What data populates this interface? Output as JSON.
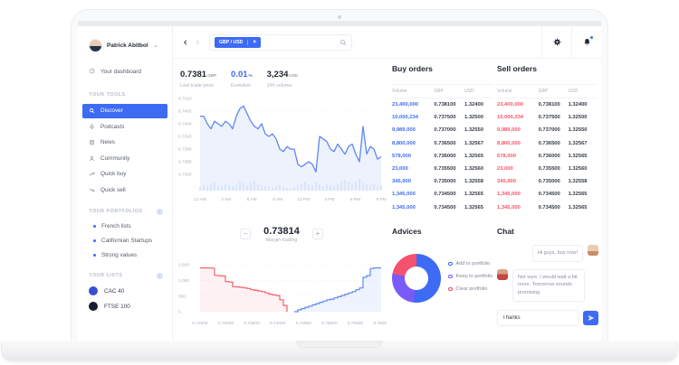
{
  "sidebar": {
    "user": {
      "name": "Patrick Abitbol"
    },
    "dashboard": {
      "label": "Your dashboard",
      "icon": "dashboard"
    },
    "tools": {
      "title": "YOUR TOOLS",
      "items": [
        {
          "label": "Discover",
          "icon": "search",
          "active": true
        },
        {
          "label": "Podcasts",
          "icon": "mic",
          "active": false
        },
        {
          "label": "News",
          "icon": "news",
          "active": false
        },
        {
          "label": "Community",
          "icon": "person",
          "active": false
        },
        {
          "label": "Quick buy",
          "icon": "trend-up",
          "active": false
        },
        {
          "label": "Quick sell",
          "icon": "trend-down",
          "active": false
        }
      ]
    },
    "portfolios": {
      "title": "YOUR PORTFOLIOS",
      "items": [
        {
          "label": "French lists"
        },
        {
          "label": "Californian Startups"
        },
        {
          "label": "Strong values"
        }
      ]
    },
    "lists": {
      "title": "YOUR LISTS",
      "items": [
        {
          "label": "CAC 40",
          "color": "#3a4ed0"
        },
        {
          "label": "FTSE 100",
          "color": "#161f2c"
        }
      ]
    }
  },
  "topbar": {
    "pair_tag": "GBP / USD",
    "close_label": "×",
    "search_placeholder": ""
  },
  "stats": [
    {
      "value": "0.7381",
      "unit": "GBP",
      "label": "Last trade price",
      "accent": false
    },
    {
      "value": "0.01",
      "unit": "%",
      "label": "Evolution",
      "accent": true
    },
    {
      "value": "3,234",
      "unit": "USD",
      "label": "24h volume",
      "accent": false
    }
  ],
  "margin": {
    "minus": "–",
    "value": "0.73814",
    "plus": "+",
    "label": "Margin trading"
  },
  "buy_orders": {
    "title": "Buy orders",
    "headers": [
      "Volume",
      "GBP",
      "USD"
    ],
    "volume_color": "blue",
    "rows": [
      [
        "23,400,000",
        "0.738100",
        "1.32400"
      ],
      [
        "10,000,234",
        "0.737500",
        "1.32500"
      ],
      [
        "9,989,000",
        "0.737000",
        "1.32550"
      ],
      [
        "8,800,000",
        "0.736500",
        "1.32567"
      ],
      [
        "578,000",
        "0.736000",
        "1.32565"
      ],
      [
        "23,000",
        "0.735500",
        "1.32560"
      ],
      [
        "345,900",
        "0.735000",
        "1.32558"
      ],
      [
        "1,345,000",
        "0.734500",
        "1.32565"
      ],
      [
        "1,345,000",
        "0.734500",
        "1.32565"
      ]
    ]
  },
  "sell_orders": {
    "title": "Sell orders",
    "headers": [
      "Volume",
      "GBP",
      "USD"
    ],
    "volume_color": "red",
    "rows": [
      [
        "23,400,000",
        "0.738100",
        "1.32400"
      ],
      [
        "10,000,234",
        "0.737500",
        "1.32500"
      ],
      [
        "9,989,000",
        "0.737000",
        "1.32550"
      ],
      [
        "8,800,000",
        "0.736500",
        "1.32567"
      ],
      [
        "578,000",
        "0.736000",
        "1.32565"
      ],
      [
        "23,000",
        "0.735500",
        "1.32560"
      ],
      [
        "345,900",
        "0.735000",
        "1.32558"
      ],
      [
        "1,345,000",
        "0.734500",
        "1.32565"
      ],
      [
        "1,345,000",
        "0.734500",
        "1.32565"
      ]
    ]
  },
  "advices": {
    "title": "Advices"
  },
  "chat": {
    "title": "Chat",
    "messages": [
      {
        "side": "right",
        "avatar": "woman",
        "text": "Hi guys, buy now!"
      },
      {
        "side": "left",
        "avatar": "man",
        "text": "Not sure. I would wait a bit more. Tomorrow sounds promising"
      }
    ],
    "input_value": "Thanks"
  },
  "chart_data": [
    {
      "type": "line",
      "name": "price-history",
      "xticks": [
        "12 AM",
        "3 AM",
        "6 AM",
        "9 AM",
        "12 PM",
        "3 PM",
        "6 PM",
        "9 PM"
      ],
      "yticks": [
        "0.7410",
        "0.7405",
        "0.7400",
        "0.7395",
        "0.7390",
        "0.7385",
        "0.7380"
      ],
      "ylim": [
        0.738,
        0.741
      ],
      "values": [
        0.7403,
        0.7403,
        0.74,
        0.7398,
        0.7401,
        0.74,
        0.7399,
        0.7401,
        0.74,
        0.7398,
        0.7403,
        0.7406,
        0.7407,
        0.7404,
        0.7401,
        0.7399,
        0.7398,
        0.74,
        0.7396,
        0.7395,
        0.7396,
        0.7394,
        0.739,
        0.7389,
        0.7391,
        0.739,
        0.739,
        0.7384,
        0.7383,
        0.7384,
        0.7385,
        0.7384,
        0.7381,
        0.7395,
        0.7394,
        0.7393,
        0.739,
        0.7389,
        0.7392,
        0.739,
        0.7388,
        0.7391,
        0.7392,
        0.7388,
        0.7385,
        0.7399,
        0.7388,
        0.7391,
        0.739,
        0.7386,
        0.7387
      ],
      "volumes": [
        4,
        6,
        5,
        7,
        9,
        6,
        5,
        8,
        6,
        5,
        7,
        10,
        8,
        6,
        9,
        11,
        7,
        6,
        5,
        4,
        3,
        5,
        6,
        4,
        3,
        2,
        4,
        6,
        8,
        10,
        7,
        6,
        9,
        7,
        5,
        8,
        6,
        5,
        7,
        9,
        12,
        10,
        8,
        11,
        13,
        9,
        7,
        6,
        8,
        5,
        6
      ],
      "line_color": "#6188f0",
      "area_color": "#edf2fd",
      "volume_color": "#d9e3f9"
    },
    {
      "type": "area-step",
      "name": "order-book-depth",
      "xticks": [
        "0.72500",
        "0.73000",
        "0.73500",
        "0.74000",
        "0.74500",
        "0.75000",
        "0.75500",
        "0.76000"
      ],
      "yticks": [
        "1,500",
        "1,000",
        "500",
        "0"
      ],
      "ylim": [
        0,
        1500
      ],
      "bids": [
        1400,
        1400,
        1400,
        1390,
        1160,
        1150,
        1140,
        960,
        950,
        800,
        790,
        780,
        760,
        740,
        700,
        680,
        660,
        640,
        600,
        560,
        540,
        520,
        380,
        200,
        0
      ],
      "asks": [
        0,
        60,
        100,
        140,
        180,
        220,
        260,
        300,
        340,
        380,
        400,
        440,
        480,
        520,
        560,
        600,
        640,
        700,
        760,
        1100,
        1150,
        1380,
        1400,
        1400,
        1400
      ],
      "bid_color": "#f0606d",
      "ask_color": "#6188f0"
    },
    {
      "type": "donut",
      "name": "advices-allocation",
      "segments": [
        {
          "label": "Add to portfolio",
          "value": 52,
          "color": "#3e6bf4"
        },
        {
          "label": "Keep to portfolio",
          "value": 26,
          "color": "#7a5af8"
        },
        {
          "label": "Clear portfolio",
          "value": 22,
          "color": "#f4516c"
        }
      ]
    }
  ]
}
